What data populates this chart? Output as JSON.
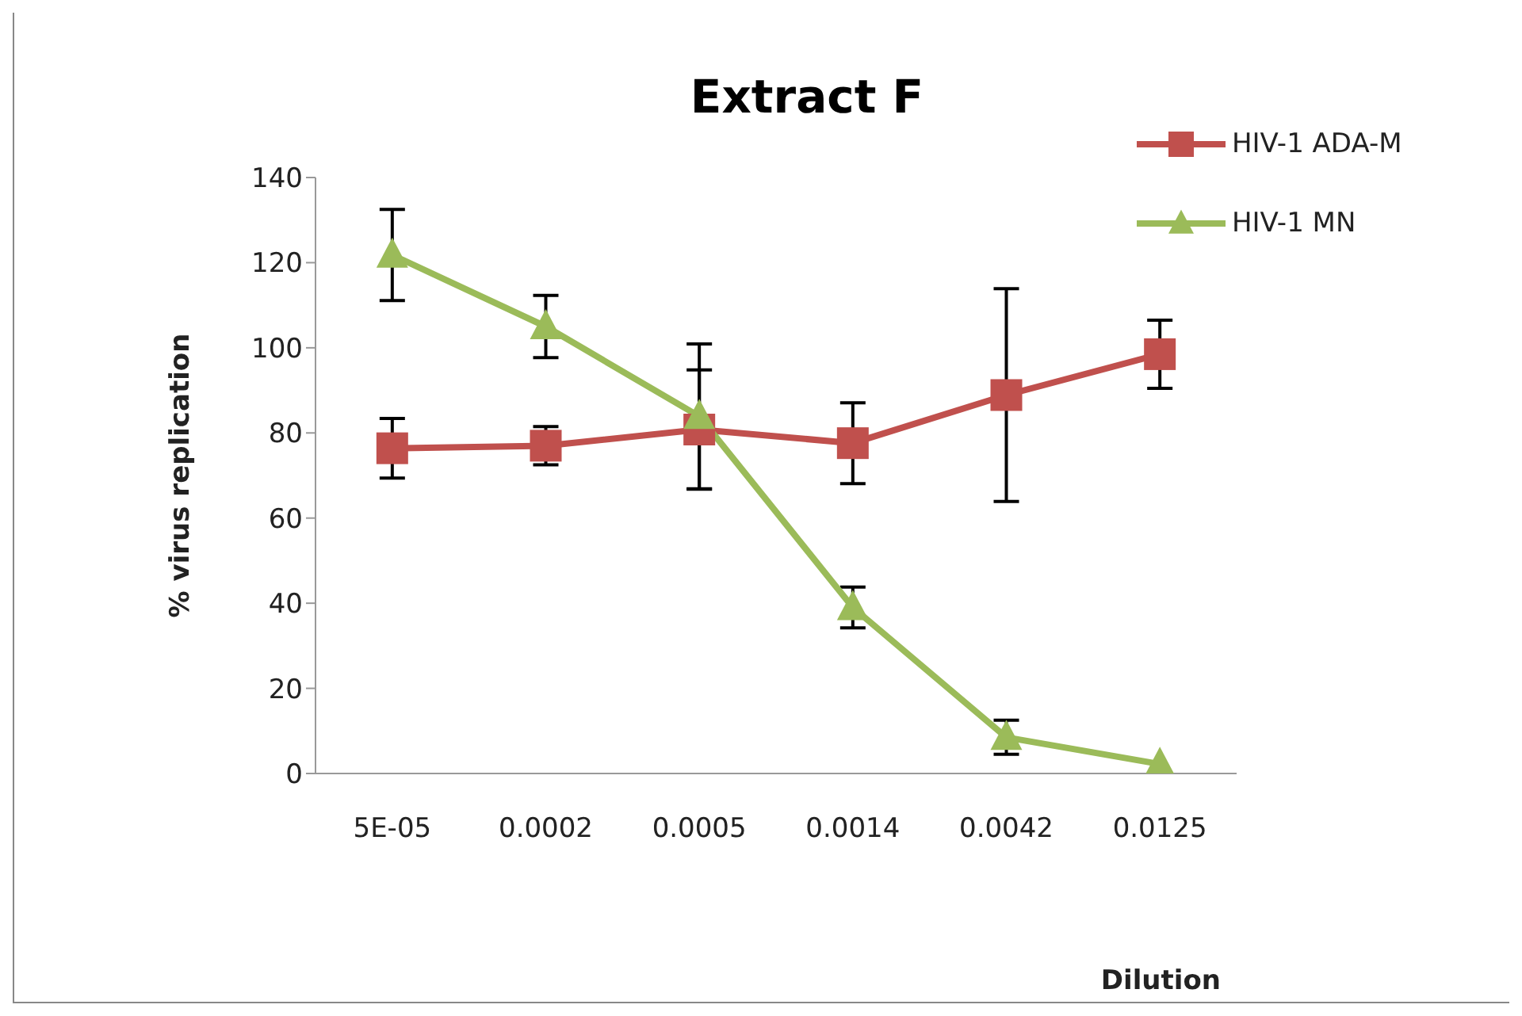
{
  "chart_data": {
    "type": "line",
    "title": "Extract F",
    "xlabel": "Dilution",
    "ylabel": "% virus replication",
    "categories": [
      "5E-05",
      "0.0002",
      "0.0005",
      "0.0014",
      "0.0042",
      "0.0125"
    ],
    "series": [
      {
        "name": "HIV-1 ADA-M",
        "color": "#c0504d",
        "marker": "square",
        "values": [
          76.4,
          77.0,
          80.8,
          77.6,
          88.9,
          98.5
        ],
        "errors": [
          7,
          4.5,
          14,
          9.5,
          25,
          8
        ]
      },
      {
        "name": "HIV-1 MN",
        "color": "#9bbb59",
        "marker": "triangle",
        "values": [
          121.8,
          105,
          83.9,
          39.0,
          8.5,
          2.2
        ],
        "errors": [
          10.7,
          7.3,
          17,
          4.8,
          4,
          null
        ]
      }
    ],
    "ylim": [
      0,
      140
    ],
    "yticks": [
      0,
      20,
      40,
      60,
      80,
      100,
      120,
      140
    ],
    "legend": "top right"
  }
}
